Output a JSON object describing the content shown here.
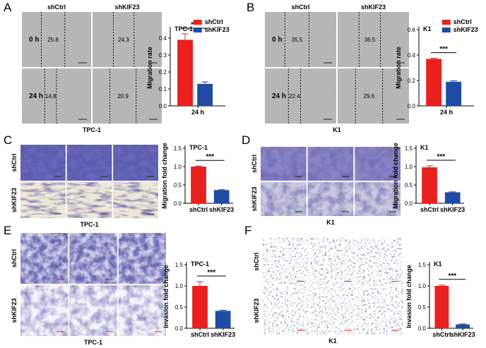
{
  "colors": {
    "shCtrl": "#e8211f",
    "shKIF23": "#1f4ba4",
    "axis": "#000000",
    "scratch_bg": "#b4b4b4",
    "stain_purple": "#4a45a8",
    "stain_dark": "#1e1d6a",
    "k1_invasion_ink": "#1c2a52"
  },
  "panels": [
    {
      "letter": "A",
      "image": {
        "col_labels": [
          "shCtrl",
          "shKIF23"
        ],
        "row_labels": [
          "0 h",
          "24 h"
        ],
        "cell_values": [
          "25.8",
          "24.3",
          "14.8",
          "20.9"
        ],
        "caption": "TPC-1",
        "kind": "scratch"
      },
      "chart": {
        "title": "TPC-1",
        "ylabel": "Migration rate",
        "yticks": [
          "0.0",
          "0.1",
          "0.2",
          "0.3",
          "0.4"
        ],
        "ylim": [
          0,
          0.45
        ],
        "categories": [
          "24 h"
        ],
        "series": [
          {
            "name": "shCtrl",
            "value": 0.39,
            "error": 0.035
          },
          {
            "name": "shKIF23",
            "value": 0.13,
            "error": 0.012
          }
        ],
        "significance": "***",
        "legend": [
          "shCtrl",
          "shKIF23"
        ]
      }
    },
    {
      "letter": "B",
      "image": {
        "col_labels": [
          "shCtrl",
          "shKIF23"
        ],
        "row_labels": [
          "0 h",
          "24 h"
        ],
        "cell_values": [
          "35.5",
          "36.5",
          "22.4",
          "29.6"
        ],
        "caption": "K1",
        "kind": "scratch"
      },
      "chart": {
        "title": "K1",
        "ylabel": "Migration rate",
        "yticks": [
          "0.0",
          "0.2",
          "0.4",
          "0.6"
        ],
        "ylim": [
          0,
          0.6
        ],
        "categories": [
          "24 h"
        ],
        "series": [
          {
            "name": "shCtrl",
            "value": 0.37,
            "error": 0.004
          },
          {
            "name": "shKIF23",
            "value": 0.19,
            "error": 0.008
          }
        ],
        "significance": "***",
        "legend": [
          "shCtrl",
          "shKIF23"
        ]
      }
    },
    {
      "letter": "C",
      "image": {
        "row_labels": [
          "shCtrl",
          "shKIF23"
        ],
        "caption": "TPC-1",
        "kind": "transwell-mig-tpc"
      },
      "chart": {
        "title": "TPC-1",
        "ylabel": "Migration fold change",
        "yticks": [
          "0.0",
          "0.5",
          "1.0",
          "1.5"
        ],
        "ylim": [
          0,
          1.5
        ],
        "categories": [
          "shCtrl",
          "shKIF23"
        ],
        "values": [
          1.0,
          0.36
        ],
        "errors": [
          0.015,
          0.012
        ],
        "significance": "***"
      }
    },
    {
      "letter": "D",
      "image": {
        "row_labels": [
          "shCtrl",
          "shKIF23"
        ],
        "caption": "K1",
        "kind": "transwell-mig-k1"
      },
      "chart": {
        "title": "K1",
        "ylabel": "Migration fold change",
        "yticks": [
          "0.0",
          "0.5",
          "1.0",
          "1.5"
        ],
        "ylim": [
          0,
          1.5
        ],
        "categories": [
          "shCtrl",
          "shKIF23"
        ],
        "values": [
          0.98,
          0.3
        ],
        "errors": [
          0.04,
          0.012
        ],
        "significance": "***"
      }
    },
    {
      "letter": "E",
      "image": {
        "row_labels": [
          "shCtrl",
          "shKIF23"
        ],
        "caption": "TPC-1",
        "kind": "invasion-tpc"
      },
      "chart": {
        "title": "TPC-1",
        "ylabel": "Invasion fold change",
        "yticks": [
          "0.0",
          "0.5",
          "1.0",
          "1.5"
        ],
        "ylim": [
          0,
          1.5
        ],
        "categories": [
          "shCtrl",
          "shKIF23"
        ],
        "values": [
          1.0,
          0.41
        ],
        "errors": [
          0.1,
          0.015
        ],
        "significance": "***"
      }
    },
    {
      "letter": "F",
      "image": {
        "row_labels": [
          "shCtrl",
          "shKIF23"
        ],
        "caption": "K1",
        "kind": "invasion-k1"
      },
      "chart": {
        "title": "K1",
        "ylabel": "Invasion fold change",
        "yticks": [
          "0.0",
          "0.5",
          "1.0",
          "1.5"
        ],
        "ylim": [
          0,
          1.5
        ],
        "categories": [
          "shCtrl",
          "shKIF23"
        ],
        "values": [
          1.0,
          0.09
        ],
        "errors": [
          0.02,
          0.01
        ],
        "significance": "***"
      }
    }
  ],
  "chart_data": [
    {
      "type": "bar",
      "title": "TPC-1",
      "ylabel": "Migration rate",
      "categories": [
        "24 h"
      ],
      "series": [
        {
          "name": "shCtrl",
          "values": [
            0.39
          ]
        },
        {
          "name": "shKIF23",
          "values": [
            0.13
          ]
        }
      ],
      "ylim": [
        0,
        0.45
      ],
      "legend": "top-right"
    },
    {
      "type": "bar",
      "title": "K1",
      "ylabel": "Migration rate",
      "categories": [
        "24 h"
      ],
      "series": [
        {
          "name": "shCtrl",
          "values": [
            0.37
          ]
        },
        {
          "name": "shKIF23",
          "values": [
            0.19
          ]
        }
      ],
      "ylim": [
        0,
        0.6
      ],
      "legend": "top-right"
    },
    {
      "type": "bar",
      "title": "TPC-1",
      "ylabel": "Migration fold change",
      "categories": [
        "shCtrl",
        "shKIF23"
      ],
      "values": [
        1.0,
        0.36
      ],
      "ylim": [
        0,
        1.5
      ]
    },
    {
      "type": "bar",
      "title": "K1",
      "ylabel": "Migration fold change",
      "categories": [
        "shCtrl",
        "shKIF23"
      ],
      "values": [
        0.98,
        0.3
      ],
      "ylim": [
        0,
        1.5
      ]
    },
    {
      "type": "bar",
      "title": "TPC-1",
      "ylabel": "Invasion fold change",
      "categories": [
        "shCtrl",
        "shKIF23"
      ],
      "values": [
        1.0,
        0.41
      ],
      "ylim": [
        0,
        1.5
      ]
    },
    {
      "type": "bar",
      "title": "K1",
      "ylabel": "Invasion fold change",
      "categories": [
        "shCtrl",
        "shKIF23"
      ],
      "values": [
        1.0,
        0.09
      ],
      "ylim": [
        0,
        1.5
      ]
    }
  ]
}
